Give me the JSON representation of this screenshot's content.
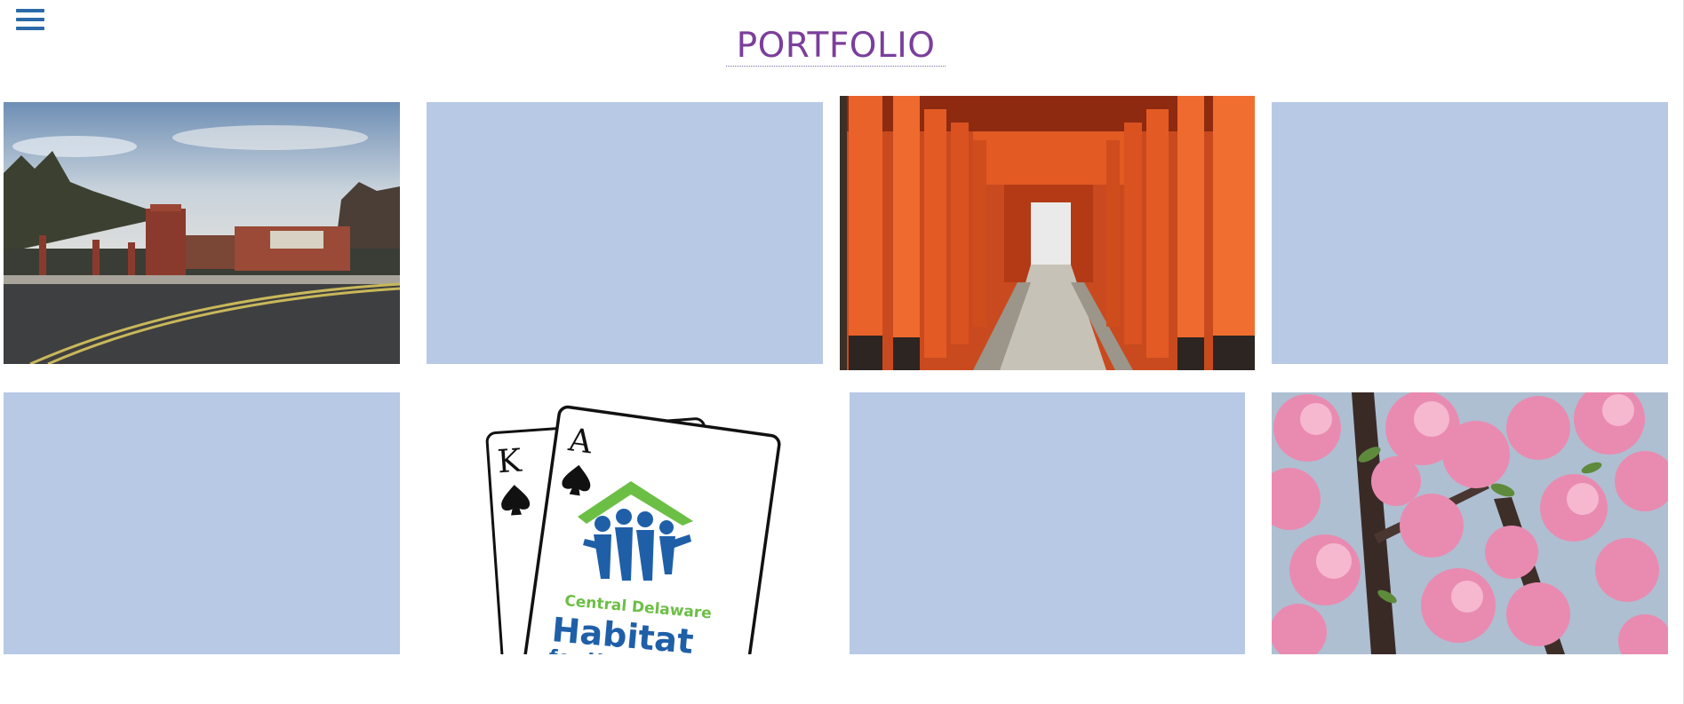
{
  "page": {
    "title": "PORTFOLIO"
  },
  "header": {
    "menu_icon": "hamburger-menu-icon"
  },
  "portfolio": {
    "items": [
      {
        "kind": "photo",
        "subject": "school-campus-photo"
      },
      {
        "kind": "placeholder"
      },
      {
        "kind": "photo",
        "subject": "torii-gates-photo"
      },
      {
        "kind": "placeholder"
      },
      {
        "kind": "placeholder"
      },
      {
        "kind": "logo",
        "subject": "habitat-playing-cards-logo",
        "card_left_rank": "K",
        "card_right_rank": "A",
        "logo_line1": "Central Delaware",
        "logo_line2": "Habitat",
        "logo_line3": "for Hu"
      },
      {
        "kind": "placeholder"
      },
      {
        "kind": "photo",
        "subject": "cherry-blossom-photo"
      }
    ]
  },
  "colors": {
    "title": "#7b3f9b",
    "menu": "#2a6aa9",
    "placeholder": "#b8c9e6",
    "habitat_green": "#6cbf45",
    "habitat_blue": "#1f5fa8"
  }
}
